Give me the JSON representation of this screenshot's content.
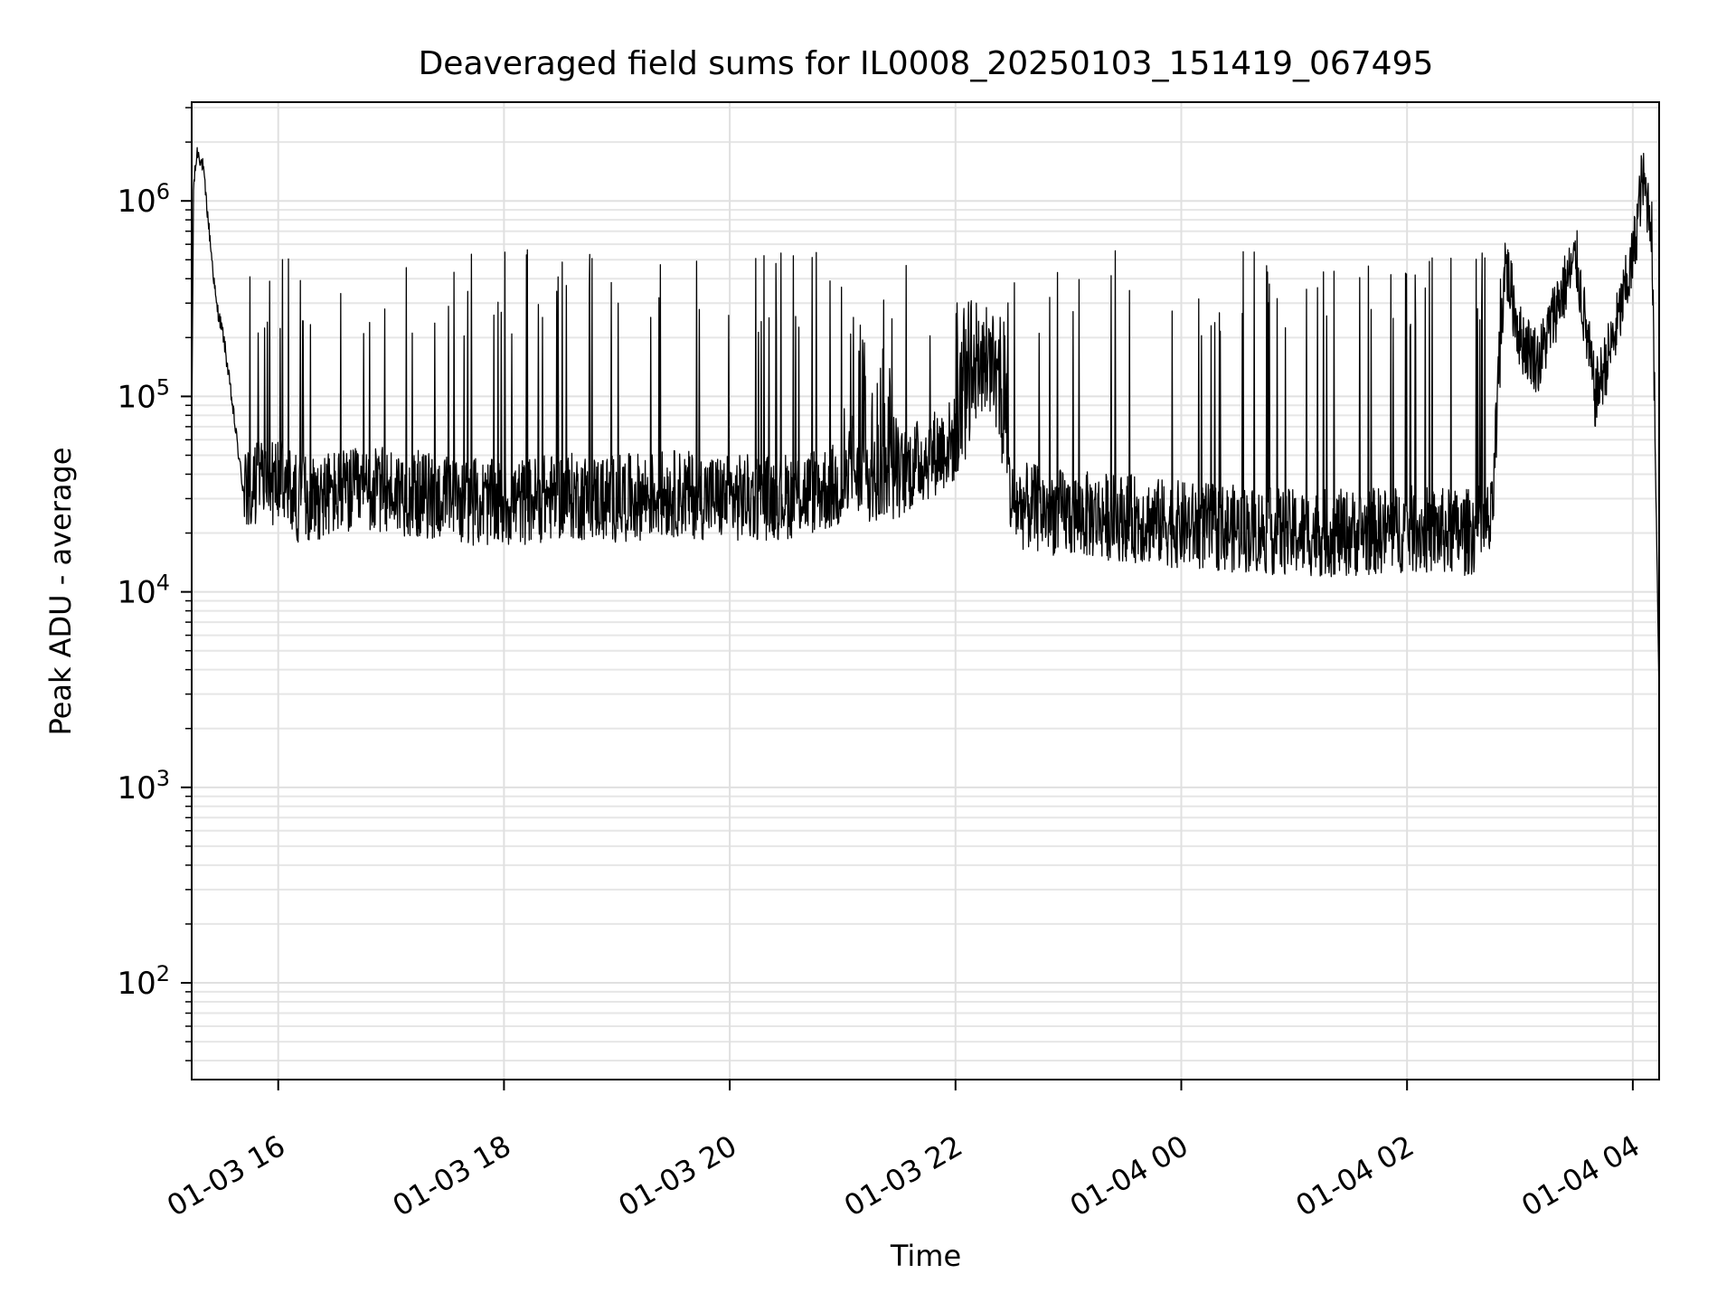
{
  "chart_data": {
    "type": "line",
    "title": "Deaveraged field sums for IL0008_20250103_151419_067495",
    "xlabel": "Time",
    "ylabel": "Peak ADU - average",
    "x_scale": "time",
    "y_scale": "log",
    "xlim": [
      "2025-01-03 15:14",
      "2025-01-04 04:14"
    ],
    "ylim": [
      32,
      3200000
    ],
    "x_ticks": [
      {
        "time": "2025-01-03 16:00",
        "label": "01-03 16"
      },
      {
        "time": "2025-01-03 18:00",
        "label": "01-03 18"
      },
      {
        "time": "2025-01-03 20:00",
        "label": "01-03 20"
      },
      {
        "time": "2025-01-03 22:00",
        "label": "01-03 22"
      },
      {
        "time": "2025-01-04 00:00",
        "label": "01-04 00"
      },
      {
        "time": "2025-01-04 02:00",
        "label": "01-04 02"
      },
      {
        "time": "2025-01-04 04:00",
        "label": "01-04 04"
      }
    ],
    "y_ticks": [
      {
        "value": 100,
        "base": "10",
        "exp": "2"
      },
      {
        "value": 1000,
        "base": "10",
        "exp": "3"
      },
      {
        "value": 10000,
        "base": "10",
        "exp": "4"
      },
      {
        "value": 100000,
        "base": "10",
        "exp": "5"
      },
      {
        "value": 1000000,
        "base": "10",
        "exp": "6"
      }
    ],
    "grid": true,
    "minor_grid": true,
    "line_color": "#000000",
    "series": [
      {
        "x": [
          "2025-01-03 15:14",
          "2025-01-03 15:15",
          "2025-01-03 15:17",
          "2025-01-03 15:20",
          "2025-01-03 15:24",
          "2025-01-03 15:27",
          "2025-01-03 15:31",
          "2025-01-03 15:34",
          "2025-01-03 15:38",
          "2025-01-03 15:41",
          "2025-01-03 15:45",
          "2025-01-03 15:50",
          "2025-01-03 15:55",
          "2025-01-03 16:00",
          "2025-01-03 16:10",
          "2025-01-03 16:30",
          "2025-01-03 17:00",
          "2025-01-03 17:30",
          "2025-01-03 18:00",
          "2025-01-03 18:30",
          "2025-01-03 19:00",
          "2025-01-03 19:30",
          "2025-01-03 20:00",
          "2025-01-03 20:30",
          "2025-01-03 21:00",
          "2025-01-03 21:30",
          "2025-01-03 22:00",
          "2025-01-03 22:10",
          "2025-01-03 22:20",
          "2025-01-03 22:30",
          "2025-01-03 23:00",
          "2025-01-03 23:30",
          "2025-01-04 00:00",
          "2025-01-04 00:30",
          "2025-01-04 01:00",
          "2025-01-04 01:30",
          "2025-01-04 02:00",
          "2025-01-04 02:30",
          "2025-01-04 02:45",
          "2025-01-04 02:52",
          "2025-01-04 03:00",
          "2025-01-04 03:10",
          "2025-01-04 03:20",
          "2025-01-04 03:30",
          "2025-01-04 03:40",
          "2025-01-04 03:50",
          "2025-01-04 04:00",
          "2025-01-04 04:05",
          "2025-01-04 04:10",
          "2025-01-04 04:14"
        ],
        "y": [
          60000,
          1200000,
          1800000,
          1500000,
          600000,
          300000,
          200000,
          120000,
          60000,
          35000,
          30000,
          40000,
          35000,
          38000,
          30000,
          32000,
          33000,
          30000,
          28000,
          31000,
          30000,
          32000,
          30000,
          31000,
          35000,
          40000,
          60000,
          100000,
          150000,
          28000,
          25000,
          24000,
          22000,
          21000,
          20000,
          20000,
          21000,
          20000,
          22000,
          500000,
          200000,
          150000,
          300000,
          500000,
          100000,
          200000,
          500000,
          1300000,
          800000,
          3000
        ]
      }
    ],
    "note_shape": "Dense noisy trace: baseline ~2e4–4e4 with frequent spikes up to ~4e5–7e5; large peaks ~1.9e6 at start and ~1.5e6 near 04:05; steep drop at end."
  }
}
